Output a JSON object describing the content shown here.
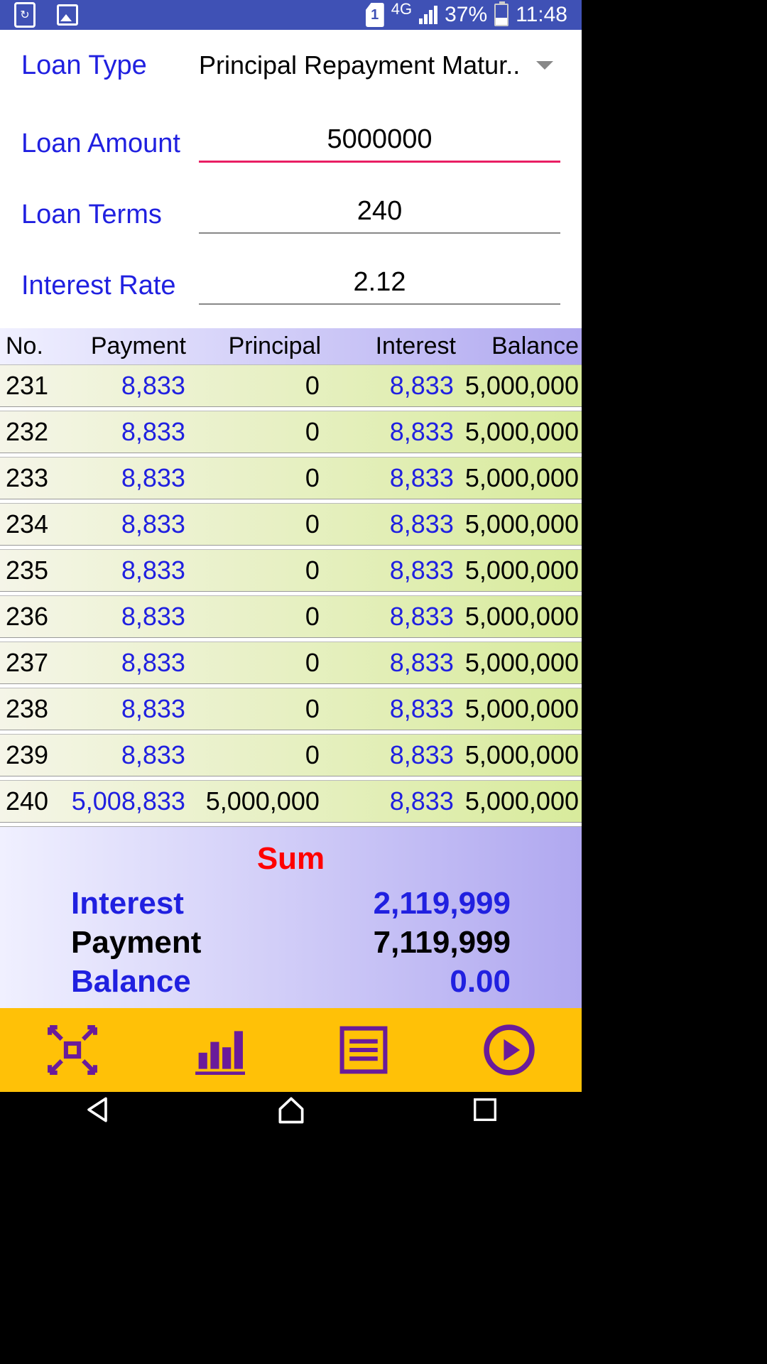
{
  "status": {
    "network_type": "4G",
    "sim": "1",
    "battery_pct": "37%",
    "time": "11:48"
  },
  "form": {
    "loan_type_label": "Loan Type",
    "loan_type_value": "Principal Repayment Matur..",
    "loan_amount_label": "Loan Amount",
    "loan_amount_value": "5000000",
    "loan_terms_label": "Loan Terms",
    "loan_terms_value": "240",
    "interest_rate_label": "Interest Rate",
    "interest_rate_value": "2.12"
  },
  "table": {
    "headers": {
      "no": "No.",
      "payment": "Payment",
      "principal": "Principal",
      "interest": "Interest",
      "balance": "Balance"
    },
    "rows": [
      {
        "no": "231",
        "payment": "8,833",
        "principal": "0",
        "interest": "8,833",
        "balance": "5,000,000"
      },
      {
        "no": "232",
        "payment": "8,833",
        "principal": "0",
        "interest": "8,833",
        "balance": "5,000,000"
      },
      {
        "no": "233",
        "payment": "8,833",
        "principal": "0",
        "interest": "8,833",
        "balance": "5,000,000"
      },
      {
        "no": "234",
        "payment": "8,833",
        "principal": "0",
        "interest": "8,833",
        "balance": "5,000,000"
      },
      {
        "no": "235",
        "payment": "8,833",
        "principal": "0",
        "interest": "8,833",
        "balance": "5,000,000"
      },
      {
        "no": "236",
        "payment": "8,833",
        "principal": "0",
        "interest": "8,833",
        "balance": "5,000,000"
      },
      {
        "no": "237",
        "payment": "8,833",
        "principal": "0",
        "interest": "8,833",
        "balance": "5,000,000"
      },
      {
        "no": "238",
        "payment": "8,833",
        "principal": "0",
        "interest": "8,833",
        "balance": "5,000,000"
      },
      {
        "no": "239",
        "payment": "8,833",
        "principal": "0",
        "interest": "8,833",
        "balance": "5,000,000"
      },
      {
        "no": "240",
        "payment": "5,008,833",
        "principal": "5,000,000",
        "interest": "8,833",
        "balance": "5,000,000"
      }
    ]
  },
  "sum": {
    "title": "Sum",
    "interest_label": "Interest",
    "interest_value": "2,119,999",
    "payment_label": "Payment",
    "payment_value": "7,119,999",
    "balance_label": "Balance",
    "balance_value": "0.00"
  },
  "colors": {
    "status_bg": "#3f51b5",
    "accent_blue": "#2020e0",
    "input_active": "#e91e63",
    "toolbar_bg": "#ffc107",
    "toolbar_icon": "#6a1b9a",
    "sum_title": "#ff0000",
    "header_grad_start": "#f0f0ff",
    "header_grad_end": "#b0a8f0",
    "row_grad_start": "#f5f5e8",
    "row_grad_end": "#d8eb9c"
  }
}
